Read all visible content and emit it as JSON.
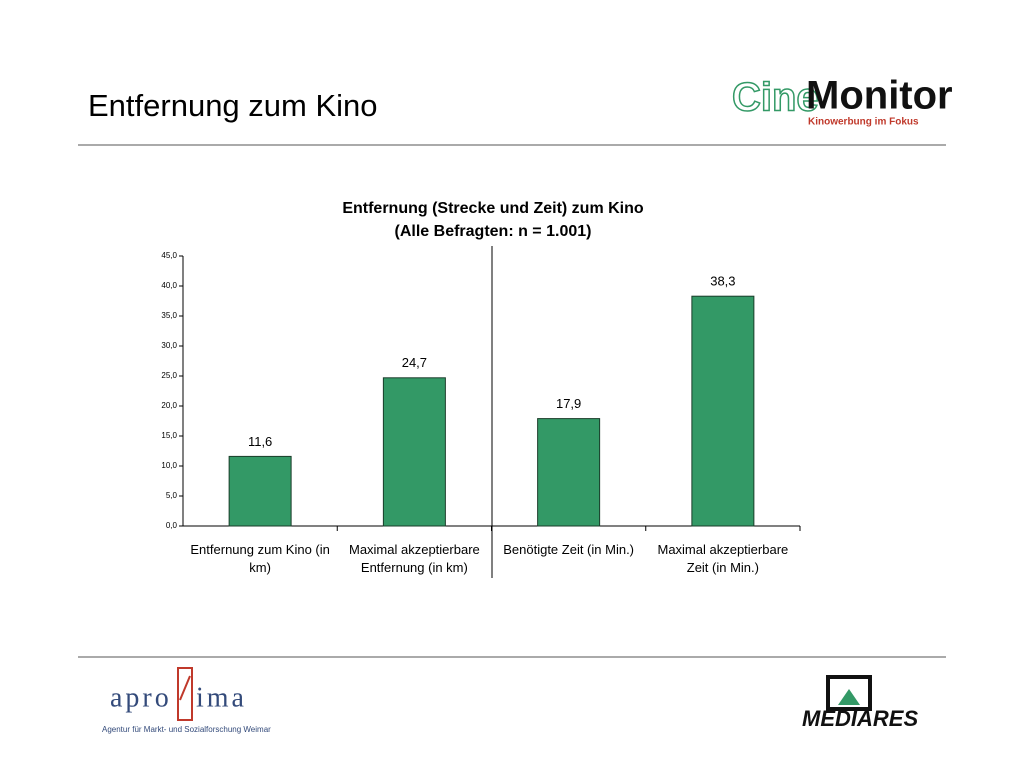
{
  "slide_title": "Entfernung zum Kino",
  "logos": {
    "cine_a": "Cine",
    "cine_b": "Monitor",
    "cine_tagline": "Kinowerbung im Fokus",
    "aproxima_a": "apro",
    "aproxima_b": "ima",
    "aproxima_tagline": "Agentur für Markt- und Sozialforschung Weimar",
    "mediares": "MEDIARES"
  },
  "chart_data": {
    "type": "bar",
    "title": "Entfernung (Strecke und Zeit) zum Kino",
    "subtitle": "(Alle Befragten:  n = 1.001)",
    "categories": [
      "Entfernung zum Kino (in km)",
      "Maximal akzeptierbare Entfernung (in km)",
      "Benötigte Zeit (in Min.)",
      "Maximal akzeptierbare Zeit (in Min.)"
    ],
    "values": [
      11.6,
      24.7,
      17.9,
      38.3
    ],
    "value_labels": [
      "11,6",
      "24,7",
      "17,9",
      "38,3"
    ],
    "color": "#339966",
    "ylim": [
      0,
      45
    ],
    "yticks": [
      {
        "value": 0,
        "label": "0,0"
      },
      {
        "value": 5,
        "label": "5,0"
      },
      {
        "value": 10,
        "label": "10,0"
      },
      {
        "value": 15,
        "label": "15,0"
      },
      {
        "value": 20,
        "label": "20,0"
      },
      {
        "value": 25,
        "label": "25,0"
      },
      {
        "value": 30,
        "label": "30,0"
      },
      {
        "value": 35,
        "label": "35,0"
      },
      {
        "value": 40,
        "label": "40,0"
      },
      {
        "value": 45,
        "label": "45,0"
      }
    ]
  }
}
